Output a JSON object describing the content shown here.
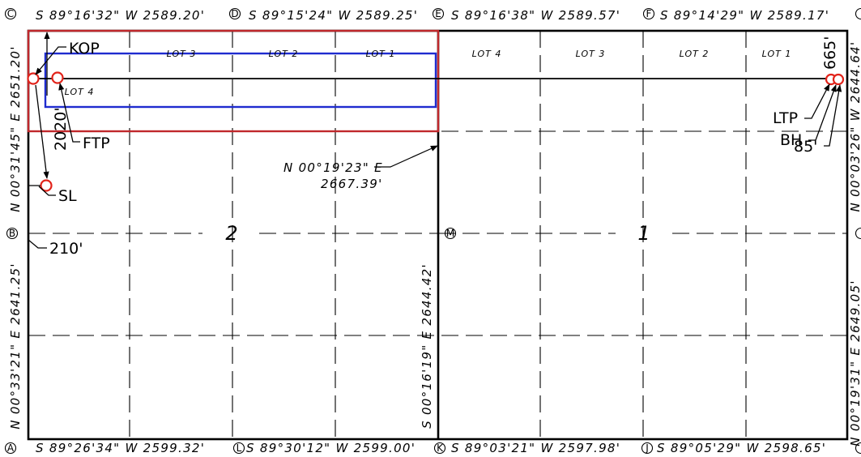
{
  "section_numbers": {
    "west": "2",
    "east": "1"
  },
  "lots": {
    "west": [
      "LOT 3",
      "LOT 2",
      "LOT 1",
      "LOT 4"
    ],
    "east": [
      "LOT 4",
      "LOT 3",
      "LOT 2",
      "LOT 1"
    ]
  },
  "bearings": {
    "top_west": "S 89°16'32\" W 2589.20'",
    "top_cw": "S 89°15'24\" W 2589.25'",
    "top_ce": "S 89°16'38\" W 2589.57'",
    "top_east": "S 89°14'29\" W 2589.17'",
    "bottom_west": "S 89°26'34\" W 2599.32'",
    "bottom_cw": "S 89°30'12\" W 2599.00'",
    "bottom_ce": "S 89°03'21\" W 2597.98'",
    "bottom_east": "S 89°05'29\" W 2598.65'",
    "left_upper": "N 00°31'45\" E 2651.20'",
    "left_lower": "N 00°33'21\" E 2641.25'",
    "right_upper": "N 00°03'26\" W 2644.64'",
    "right_lower": "N 00°19'31\" E 2649.05'",
    "center_lower": "S 00°16'19\" E 2644.42'",
    "center_upper_1": "N 00°19'23\" E",
    "center_upper_2": "2667.39'"
  },
  "markers": {
    "top": [
      "C",
      "D",
      "E",
      "F"
    ],
    "bottom": [
      "A",
      "L",
      "K",
      "J"
    ],
    "left_mid": "B",
    "center": "M"
  },
  "markers_partial": {
    "top_right": "?",
    "right_mid": "?",
    "bottom_right": "?"
  },
  "callouts": {
    "kop": "KOP",
    "ftp": "FTP",
    "sl": "SL",
    "d210": "210'",
    "d2020": "2020'",
    "ltp": "LTP",
    "bh": "BH",
    "d85": "85'",
    "d665": "665'"
  },
  "colors": {
    "line": "#000000",
    "red_box": "#c0282c",
    "blue_box": "#1f2ccf",
    "point_marker": "#e2231a",
    "background": "#ffffff"
  }
}
